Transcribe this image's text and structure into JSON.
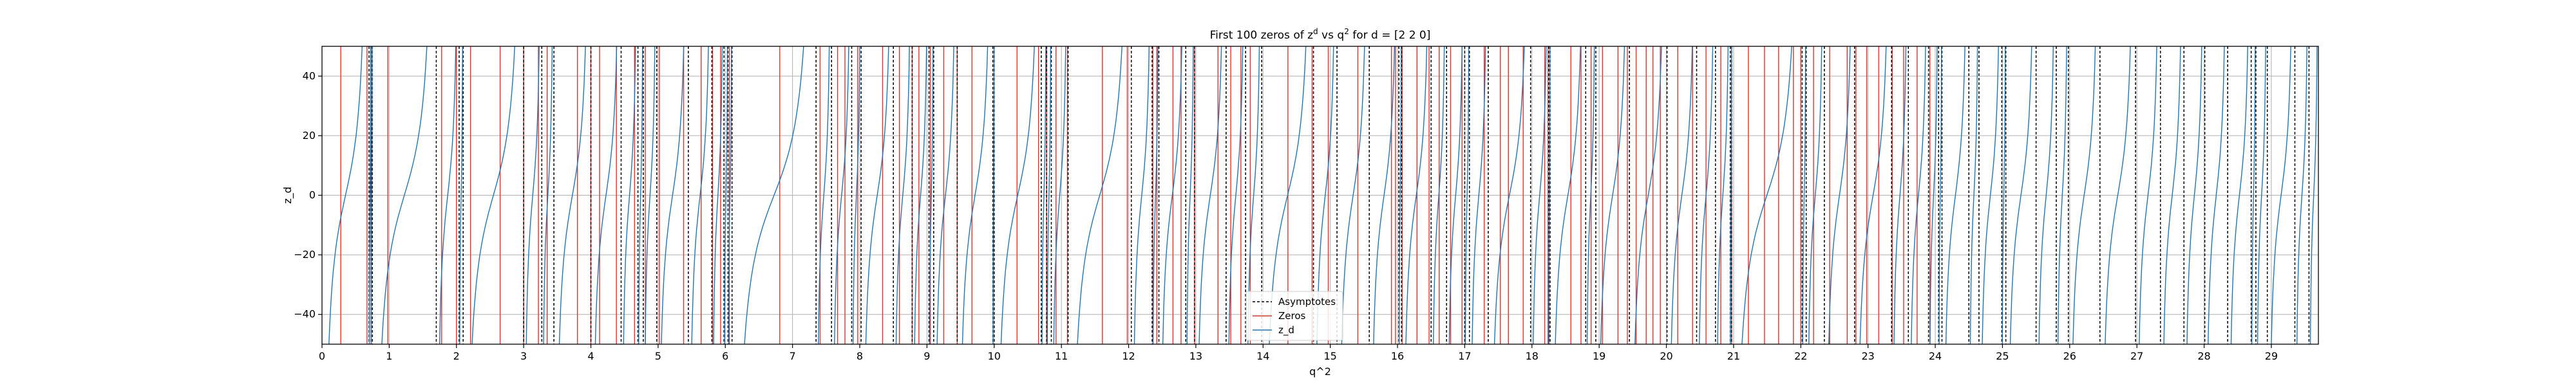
{
  "chart_data": {
    "type": "line",
    "title": {
      "prefix": "First 100 zeros of z",
      "sup1": "d",
      "middle": " vs q",
      "sup2": "2",
      "suffix": " for d = [2 2 0]"
    },
    "xlabel": "q^2",
    "ylabel": "z_d",
    "xlim": [
      0,
      29.7
    ],
    "ylim": [
      -50,
      50
    ],
    "xticks": [
      0,
      1,
      2,
      3,
      4,
      5,
      6,
      7,
      8,
      9,
      10,
      11,
      12,
      13,
      14,
      15,
      16,
      17,
      18,
      19,
      20,
      21,
      22,
      23,
      24,
      25,
      26,
      27,
      28,
      29
    ],
    "yticks": [
      -40,
      -20,
      0,
      20,
      40
    ],
    "grid": true,
    "legend": {
      "placement": "lower-center",
      "entries": [
        "Asymptotes",
        "Zeros",
        "z_d"
      ]
    },
    "colors": {
      "asymptote": "#000000",
      "zero": "#e8302a",
      "curve": "#1f77b4",
      "grid": "#b0b0b0"
    },
    "asymptotes": [
      0.7,
      0.73,
      0.75,
      1.7,
      2.04,
      2.1,
      3.0,
      3.27,
      3.45,
      4.0,
      4.45,
      4.7,
      4.78,
      4.98,
      5.45,
      5.8,
      5.98,
      6.04,
      6.1,
      7.35,
      7.58,
      7.88,
      8.02,
      8.5,
      8.78,
      9.03,
      9.1,
      9.45,
      9.98,
      10.0,
      10.7,
      10.78,
      10.85,
      11.1,
      12.04,
      12.35,
      12.45,
      12.85,
      12.98,
      13.45,
      13.74,
      13.98,
      14.75,
      15.1,
      15.58,
      16.02,
      16.06,
      16.5,
      16.73,
      17.0,
      17.07,
      17.35,
      17.98,
      18.25,
      18.27,
      18.8,
      18.95,
      19.45,
      20.01,
      20.45,
      20.73,
      20.95,
      20.97,
      22.02,
      22.08,
      22.35,
      22.8,
      23.35,
      23.6,
      23.9,
      24.05,
      24.1,
      24.5,
      24.65,
      24.99,
      25.05,
      25.5,
      25.8,
      25.98,
      26.45,
      26.98,
      27.35,
      27.7,
      28.01,
      28.35,
      28.7,
      28.77,
      28.94,
      29.35,
      29.56
    ],
    "zeros": [
      0.28,
      0.67,
      0.73,
      0.98,
      1.78,
      2.0,
      2.21,
      2.65,
      3.0,
      3.22,
      3.35,
      3.8,
      4.0,
      4.13,
      4.38,
      4.65,
      4.81,
      5.02,
      5.38,
      5.64,
      5.81,
      5.93,
      6.06,
      6.81,
      7.41,
      7.67,
      7.78,
      7.97,
      8.34,
      8.59,
      8.78,
      8.88,
      9.05,
      9.25,
      9.45,
      9.67,
      10.34,
      10.66,
      10.78,
      10.92,
      11.09,
      11.61,
      11.98,
      12.36,
      12.42,
      12.66,
      12.78,
      12.98,
      13.33,
      13.52,
      13.67,
      13.81,
      14.37,
      14.73,
      14.97,
      15.41,
      15.91,
      15.97,
      16.07,
      16.29,
      16.47,
      16.62,
      16.79,
      16.96,
      17.29,
      17.53,
      17.65,
      17.87,
      18.19,
      18.24,
      18.58,
      18.73,
      18.88,
      19.05,
      19.28,
      19.42,
      19.55,
      19.7,
      19.8,
      19.91,
      20.17,
      20.39,
      20.59,
      20.81,
      20.97,
      21.22,
      21.46,
      21.67,
      21.89,
      22.0,
      22.19,
      22.43,
      22.69,
      22.82,
      22.98,
      23.16,
      23.36,
      23.53,
      23.73,
      23.92
    ]
  }
}
